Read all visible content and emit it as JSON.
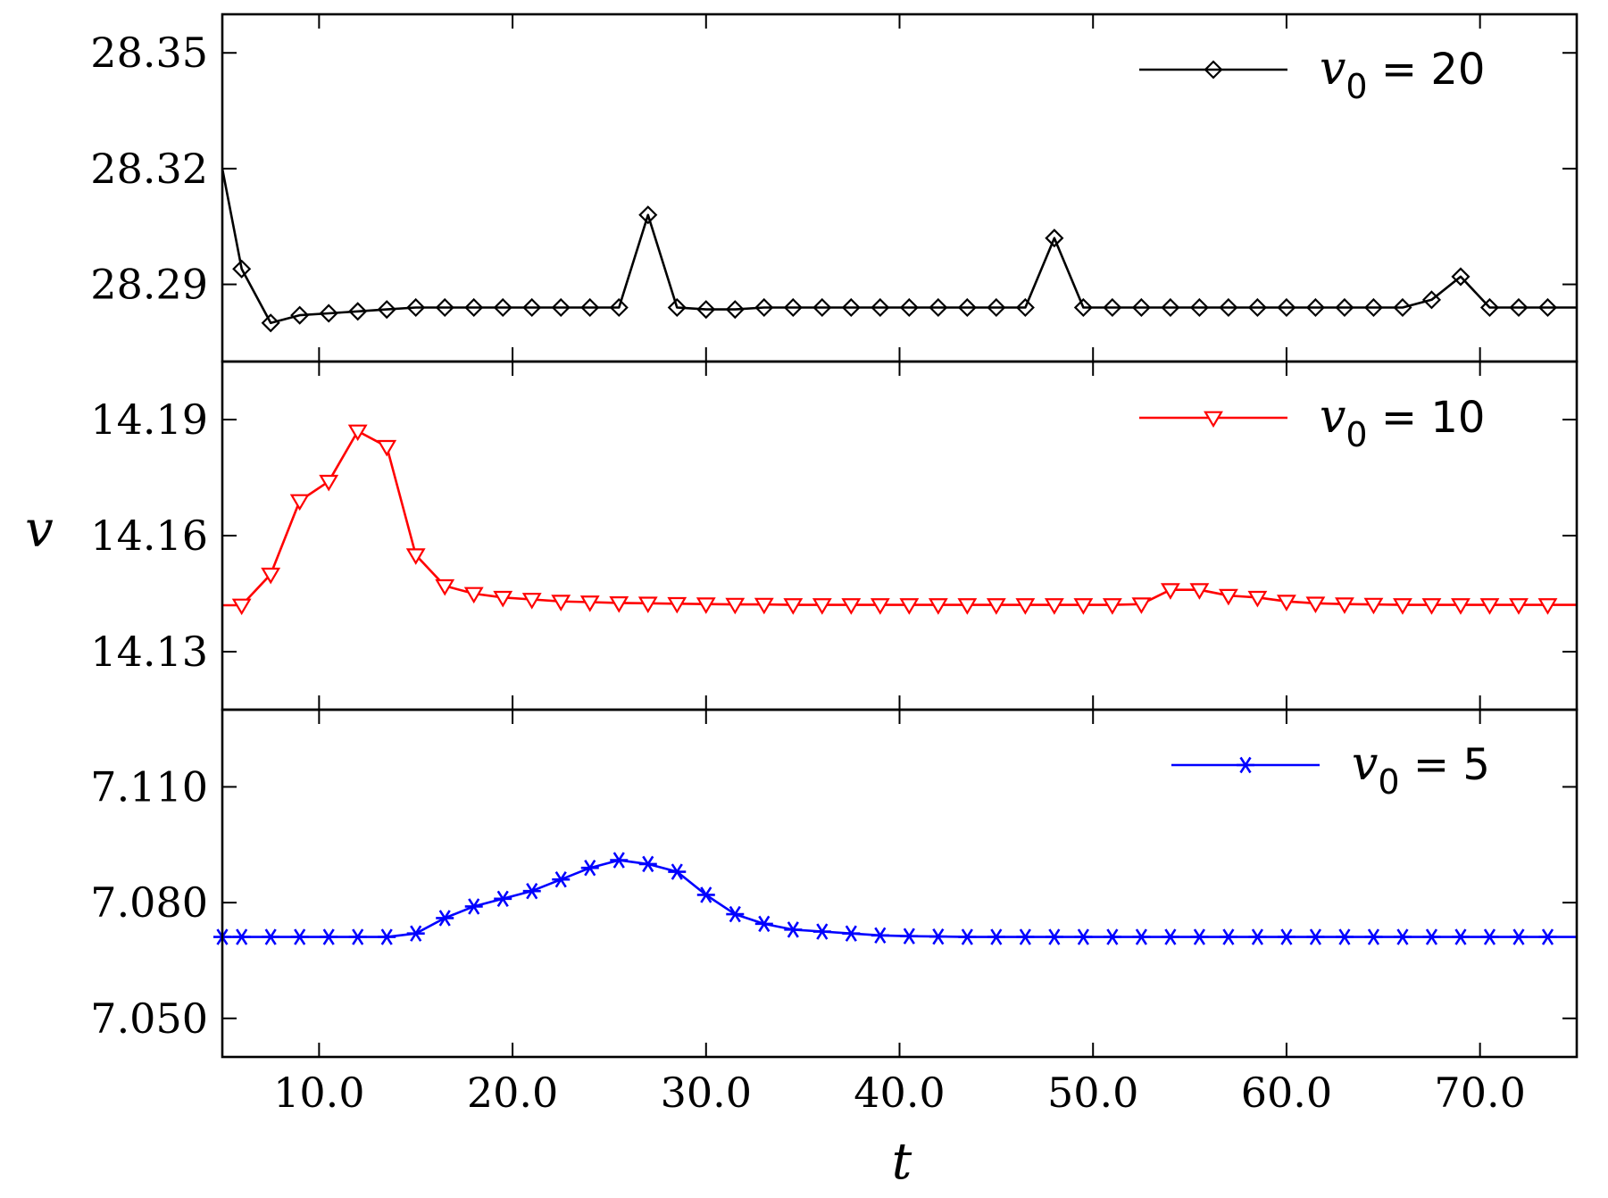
{
  "chart_data": {
    "type": "line",
    "layout": "three vertically stacked panels sharing the x axis",
    "xlabel": "t",
    "ylabel": "v",
    "xlim": [
      5,
      75
    ],
    "xticks": [
      10,
      20,
      30,
      40,
      50,
      60,
      70
    ],
    "xtick_labels": [
      "10.0",
      "20.0",
      "30.0",
      "40.0",
      "50.0",
      "60.0",
      "70.0"
    ],
    "x": [
      5,
      6,
      7.5,
      9,
      10.5,
      12,
      13.5,
      15,
      16.5,
      18,
      19.5,
      21,
      22.5,
      24,
      25.5,
      27,
      28.5,
      30,
      31.5,
      33,
      34.5,
      36,
      37.5,
      39,
      40.5,
      42,
      43.5,
      45,
      46.5,
      48,
      49.5,
      51,
      52.5,
      54,
      55.5,
      57,
      58.5,
      60,
      61.5,
      63,
      64.5,
      66,
      67.5,
      69,
      70.5,
      72,
      73.5,
      75
    ],
    "panels": [
      {
        "series_name": "v0 = 20",
        "legend_symbol": "v",
        "legend_sub": "0",
        "legend_rest": " = 20",
        "color": "#000000",
        "marker": "diamond",
        "ylim": [
          28.27,
          28.36
        ],
        "yticks": [
          28.29,
          28.32,
          28.35
        ],
        "ytick_labels": [
          "28.29",
          "28.32",
          "28.35"
        ],
        "values": [
          28.32,
          28.294,
          28.28,
          28.282,
          28.2825,
          28.283,
          28.2835,
          28.284,
          28.284,
          28.284,
          28.284,
          28.284,
          28.284,
          28.284,
          28.284,
          28.308,
          28.284,
          28.2835,
          28.2835,
          28.284,
          28.284,
          28.284,
          28.284,
          28.284,
          28.284,
          28.284,
          28.284,
          28.284,
          28.284,
          28.302,
          28.284,
          28.284,
          28.284,
          28.284,
          28.284,
          28.284,
          28.284,
          28.284,
          28.284,
          28.284,
          28.284,
          28.284,
          28.286,
          28.292,
          28.284,
          28.284,
          28.284,
          28.284
        ],
        "first_marker_index": 1
      },
      {
        "series_name": "v0 = 10",
        "legend_symbol": "v",
        "legend_sub": "0",
        "legend_rest": " = 10",
        "color": "#ff0000",
        "marker": "triangle-down",
        "ylim": [
          14.115,
          14.205
        ],
        "yticks": [
          14.13,
          14.16,
          14.19
        ],
        "ytick_labels": [
          "14.13",
          "14.16",
          "14.19"
        ],
        "values": [
          14.142,
          14.142,
          14.15,
          14.169,
          14.174,
          14.187,
          14.183,
          14.155,
          14.147,
          14.145,
          14.144,
          14.1435,
          14.143,
          14.1428,
          14.1426,
          14.1425,
          14.1424,
          14.1423,
          14.1422,
          14.1422,
          14.1421,
          14.1421,
          14.1421,
          14.1421,
          14.1421,
          14.1421,
          14.1421,
          14.1421,
          14.1421,
          14.1421,
          14.1421,
          14.1421,
          14.1423,
          14.146,
          14.146,
          14.1445,
          14.144,
          14.143,
          14.1425,
          14.1423,
          14.1422,
          14.1421,
          14.1421,
          14.1421,
          14.1421,
          14.1421,
          14.1421,
          14.1421
        ],
        "first_marker_index": 1
      },
      {
        "series_name": "v0 = 5",
        "legend_symbol": "v",
        "legend_sub": "0",
        "legend_rest": " = 5",
        "color": "#0000ff",
        "marker": "asterisk",
        "ylim": [
          7.04,
          7.13
        ],
        "yticks": [
          7.05,
          7.08,
          7.11
        ],
        "ytick_labels": [
          "7.050",
          "7.080",
          "7.110"
        ],
        "values": [
          7.0711,
          7.0711,
          7.0711,
          7.0711,
          7.0711,
          7.0711,
          7.0711,
          7.072,
          7.076,
          7.079,
          7.081,
          7.083,
          7.086,
          7.089,
          7.091,
          7.09,
          7.088,
          7.082,
          7.077,
          7.0745,
          7.073,
          7.0725,
          7.072,
          7.0715,
          7.0713,
          7.0712,
          7.0711,
          7.0711,
          7.0711,
          7.0711,
          7.0711,
          7.0711,
          7.0711,
          7.0711,
          7.0711,
          7.0711,
          7.0711,
          7.0711,
          7.0711,
          7.0711,
          7.0711,
          7.0711,
          7.0711,
          7.0711,
          7.0711,
          7.0711,
          7.0711,
          7.0711
        ],
        "first_marker_index": 0
      }
    ]
  }
}
